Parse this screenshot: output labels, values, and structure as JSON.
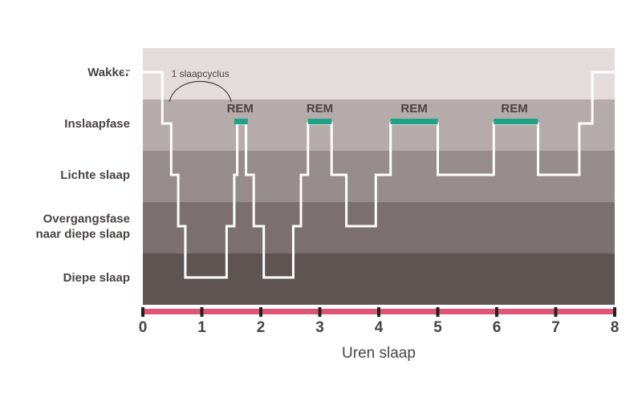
{
  "chart_data": {
    "type": "line",
    "xlabel": "Uren slaap",
    "xlim": [
      0,
      8
    ],
    "x_ticks": [
      "0",
      "1",
      "2",
      "3",
      "4",
      "5",
      "6",
      "7",
      "8"
    ],
    "stages": [
      {
        "lines": [
          "Wakker"
        ],
        "color": "#e4dcdc"
      },
      {
        "lines": [
          "Inslaapfase"
        ],
        "color": "#b5abab"
      },
      {
        "lines": [
          "Lichte slaap"
        ],
        "color": "#978c8c"
      },
      {
        "lines": [
          "Overgangsfase",
          "naar diepe slaap"
        ],
        "color": "#7b706f"
      },
      {
        "lines": [
          "Diepe slaap"
        ],
        "color": "#5e5452"
      }
    ],
    "series": [
      {
        "color": "#ffffff",
        "points": [
          [
            0,
            0
          ],
          [
            0.33,
            0
          ],
          [
            0.33,
            1
          ],
          [
            0.48,
            1
          ],
          [
            0.48,
            2
          ],
          [
            0.6,
            2
          ],
          [
            0.6,
            3
          ],
          [
            0.72,
            3
          ],
          [
            0.72,
            4
          ],
          [
            1.42,
            4
          ],
          [
            1.42,
            3
          ],
          [
            1.55,
            3
          ],
          [
            1.55,
            2
          ],
          [
            1.6,
            2
          ],
          [
            1.6,
            1
          ],
          [
            1.75,
            1
          ],
          [
            1.75,
            2
          ],
          [
            1.88,
            2
          ],
          [
            1.88,
            3
          ],
          [
            2.05,
            3
          ],
          [
            2.05,
            4
          ],
          [
            2.55,
            4
          ],
          [
            2.55,
            3
          ],
          [
            2.68,
            3
          ],
          [
            2.68,
            2
          ],
          [
            2.8,
            2
          ],
          [
            2.8,
            1
          ],
          [
            3.2,
            1
          ],
          [
            3.2,
            2
          ],
          [
            3.45,
            2
          ],
          [
            3.45,
            3
          ],
          [
            3.95,
            3
          ],
          [
            3.95,
            2
          ],
          [
            4.2,
            2
          ],
          [
            4.2,
            1
          ],
          [
            5.0,
            1
          ],
          [
            5.0,
            2
          ],
          [
            5.95,
            2
          ],
          [
            5.95,
            1
          ],
          [
            6.7,
            1
          ],
          [
            6.7,
            2
          ],
          [
            7.4,
            2
          ],
          [
            7.4,
            1
          ],
          [
            7.62,
            1
          ],
          [
            7.62,
            0
          ],
          [
            8.0,
            0
          ]
        ]
      }
    ],
    "rem": {
      "label": "REM",
      "color": "#1fa384",
      "periods": [
        [
          1.55,
          1.78
        ],
        [
          2.8,
          3.2
        ],
        [
          4.2,
          5.0
        ],
        [
          5.95,
          6.7
        ]
      ],
      "label_positions": [
        1.65,
        3.0,
        4.6,
        6.3
      ]
    },
    "cycle_annotation": {
      "label": "1 slaapcyclus",
      "from": 0.45,
      "to": 1.5
    },
    "axis_color": "#e05577"
  }
}
